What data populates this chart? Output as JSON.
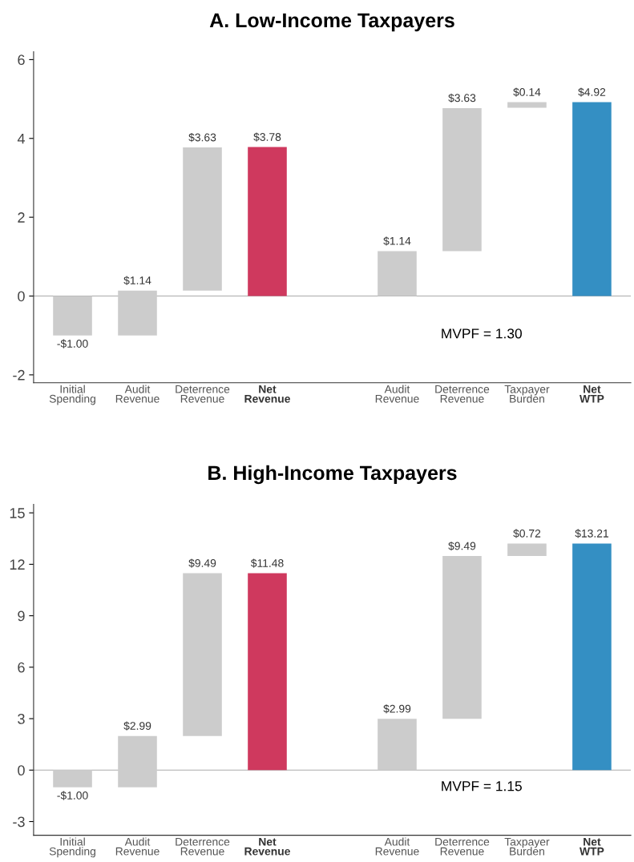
{
  "chart_data": [
    {
      "type": "bar",
      "title": "A. Low-Income Taxpayers",
      "categories": [
        "Initial\nSpending",
        "Audit\nRevenue",
        "Deterrence\nRevenue",
        "Net\nRevenue",
        null,
        "Audit\nRevenue",
        "Deterrence\nRevenue",
        "Taxpayer\nBurden",
        "Net\nWTP"
      ],
      "values": [
        -1.0,
        1.14,
        3.63,
        3.78,
        null,
        1.14,
        3.63,
        0.14,
        4.92
      ],
      "base": [
        0,
        -1.0,
        0.14,
        0,
        null,
        0,
        1.14,
        4.78,
        0
      ],
      "colors": [
        "#cccccc",
        "#cccccc",
        "#cccccc",
        "#cf395e",
        null,
        "#cccccc",
        "#cccccc",
        "#cccccc",
        "#348fc3"
      ],
      "value_labels": [
        "-$1.00",
        "$1.14",
        "$3.63",
        "$3.78",
        null,
        "$1.14",
        "$3.63",
        "$0.14",
        "$4.92"
      ],
      "ylim": [
        -2.2,
        6.2
      ],
      "yticks": [
        -2,
        0,
        2,
        4,
        6
      ],
      "ref_lines": [
        {
          "axis": "y",
          "value": 0,
          "color": "#aaaaaa"
        }
      ],
      "annotations": [
        "MVPF = 1.30"
      ],
      "grid": false,
      "legend": false
    },
    {
      "type": "bar",
      "title": "B. High-Income Taxpayers",
      "categories": [
        "Initial\nSpending",
        "Audit\nRevenue",
        "Deterrence\nRevenue",
        "Net\nRevenue",
        null,
        "Audit\nRevenue",
        "Deterrence\nRevenue",
        "Taxpayer\nBurden",
        "Net\nWTP"
      ],
      "values": [
        -1.0,
        2.99,
        9.49,
        11.48,
        null,
        2.99,
        9.49,
        0.72,
        13.21
      ],
      "base": [
        0,
        -1.0,
        1.99,
        0,
        null,
        0,
        2.99,
        12.49,
        0
      ],
      "colors": [
        "#cccccc",
        "#cccccc",
        "#cccccc",
        "#cf395e",
        null,
        "#cccccc",
        "#cccccc",
        "#cccccc",
        "#348fc3"
      ],
      "value_labels": [
        "-$1.00",
        "$2.99",
        "$9.49",
        "$11.48",
        null,
        "$2.99",
        "$9.49",
        "$0.72",
        "$13.21"
      ],
      "ylim": [
        -3.8,
        15.5
      ],
      "yticks": [
        -3,
        0,
        3,
        6,
        9,
        12,
        15
      ],
      "ref_lines": [
        {
          "axis": "y",
          "value": 0,
          "color": "#aaaaaa"
        }
      ],
      "annotations": [
        "MVPF = 1.15"
      ],
      "grid": false,
      "legend": false
    }
  ]
}
